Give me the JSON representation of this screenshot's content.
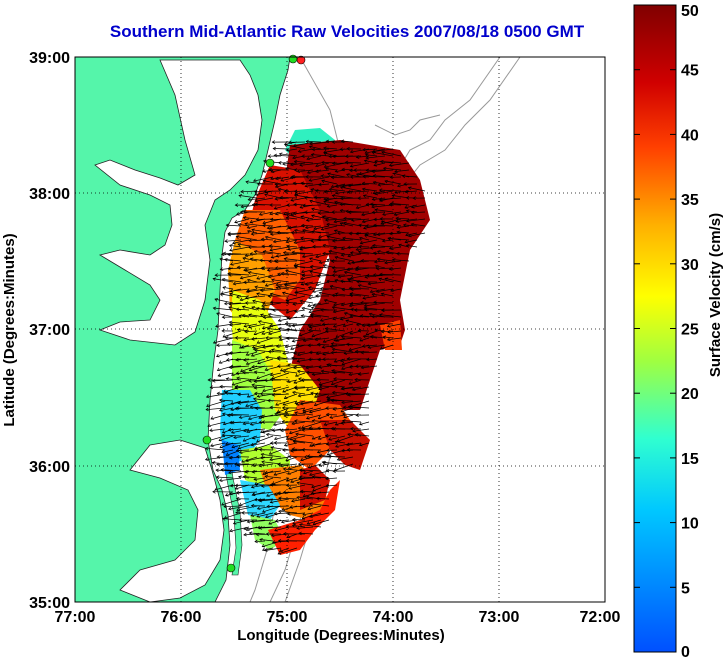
{
  "title": "Southern Mid-Atlantic Raw Velocities 2007/08/18 0500 GMT",
  "map": {
    "xlabel": "Longitude (Degrees:Minutes)",
    "ylabel": "Latitude (Degrees:Minutes)",
    "lon_range": [
      -77,
      -72
    ],
    "lat_range": [
      35,
      39
    ],
    "x_ticks": [
      "77:00",
      "76:00",
      "75:00",
      "74:00",
      "73:00",
      "72:00"
    ],
    "y_ticks": [
      "39:00",
      "38:00",
      "37:00",
      "36:00",
      "35:00"
    ],
    "grid": "dotted",
    "land_color": "#55f5aa",
    "stations_color": "#22dd22"
  },
  "colorbar": {
    "label": "Surface Velocity (cm/s)",
    "range": [
      0,
      50
    ],
    "ticks": [
      "0",
      "5",
      "10",
      "15",
      "20",
      "25",
      "30",
      "35",
      "40",
      "45",
      "50"
    ],
    "colormap": "jet"
  }
}
